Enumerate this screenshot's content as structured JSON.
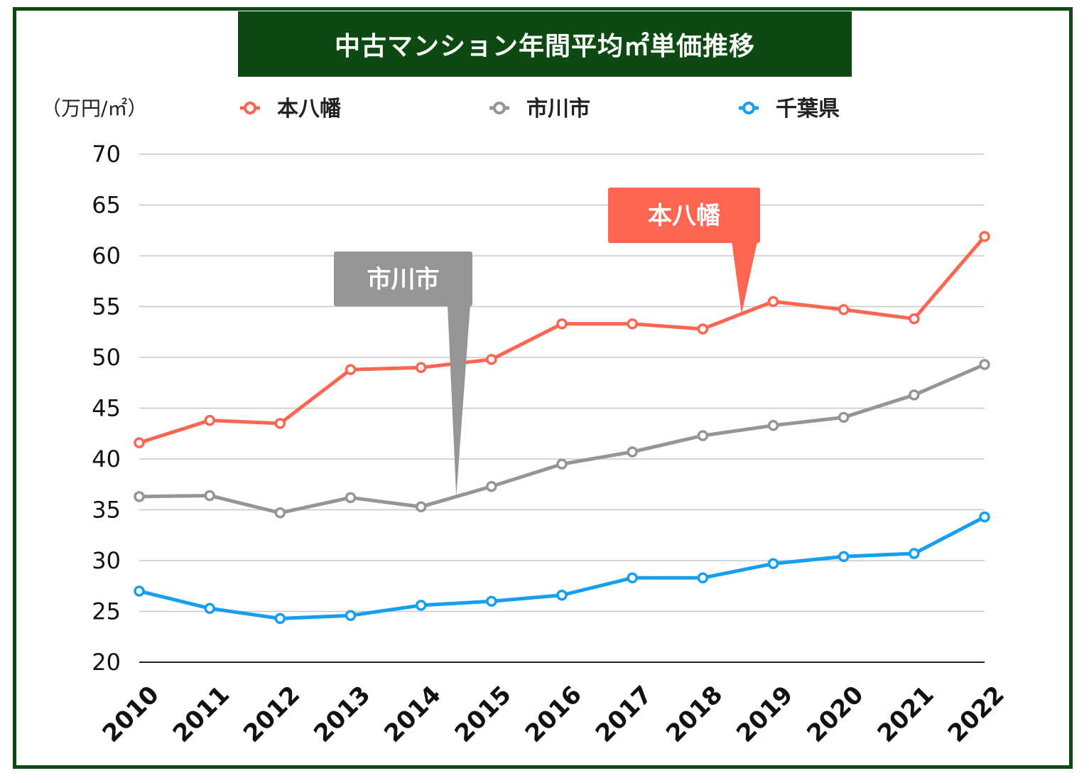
{
  "chart_data": {
    "type": "line",
    "title": "中古マンション年間平均㎡単価推移",
    "ylabel": "（万円/㎡）",
    "xlabel": "",
    "ylim": [
      20,
      70
    ],
    "yticks": [
      20,
      25,
      30,
      35,
      40,
      45,
      50,
      55,
      60,
      65,
      70
    ],
    "grid": true,
    "legend_position": "top",
    "x": [
      "2010",
      "2011",
      "2012",
      "2013",
      "2014",
      "2015",
      "2016",
      "2017",
      "2018",
      "2019",
      "2020",
      "2021",
      "2022"
    ],
    "series": [
      {
        "name": "本八幡",
        "color": "#fe6651",
        "values": [
          41.6,
          43.8,
          43.5,
          48.8,
          49.0,
          49.8,
          53.3,
          53.3,
          52.8,
          55.5,
          54.7,
          53.8,
          61.9
        ]
      },
      {
        "name": "市川市",
        "color": "#959595",
        "values": [
          36.3,
          36.4,
          34.7,
          36.2,
          35.3,
          37.3,
          39.5,
          40.7,
          42.3,
          43.3,
          44.1,
          46.3,
          49.3
        ]
      },
      {
        "name": "千葉県",
        "color": "#149ff0",
        "values": [
          27.0,
          25.3,
          24.3,
          24.6,
          25.6,
          26.0,
          26.6,
          28.3,
          28.3,
          29.7,
          30.4,
          30.7,
          34.3
        ]
      }
    ],
    "callouts": [
      {
        "label": "市川市",
        "color": "#959595",
        "series": "市川市",
        "x_point": 4.5
      },
      {
        "label": "本八幡",
        "color": "#fe6651",
        "series": "本八幡",
        "x_point": 8.55
      }
    ]
  }
}
